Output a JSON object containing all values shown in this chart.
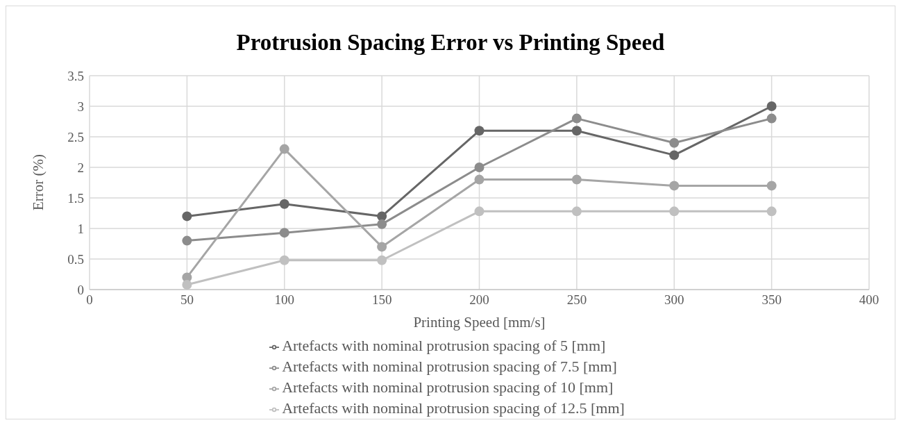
{
  "chart_data": {
    "type": "line",
    "title": "Protrusion Spacing Error vs Printing Speed",
    "xlabel": "Printing Speed [mm/s]",
    "ylabel": "Error (%)",
    "x": [
      50,
      100,
      150,
      200,
      250,
      300,
      350
    ],
    "series": [
      {
        "name": "Artefacts with nominal protrusion spacing of 5 [mm]",
        "color": "#666666",
        "values": [
          1.2,
          1.4,
          1.2,
          2.6,
          2.6,
          2.2,
          3.0
        ]
      },
      {
        "name": "Artefacts with nominal protrusion spacing of 7.5 [mm]",
        "color": "#8c8c8c",
        "values": [
          0.8,
          0.93,
          1.07,
          2.0,
          2.8,
          2.4,
          2.8
        ]
      },
      {
        "name": "Artefacts with nominal protrusion spacing of 10 [mm]",
        "color": "#a5a5a5",
        "values": [
          0.2,
          2.3,
          0.7,
          1.8,
          1.8,
          1.7,
          1.7
        ]
      },
      {
        "name": "Artefacts with nominal protrusion spacing of 12.5 [mm]",
        "color": "#c0c0c0",
        "values": [
          0.08,
          0.48,
          0.48,
          1.28,
          1.28,
          1.28,
          1.28
        ]
      }
    ],
    "xlim": [
      0,
      400
    ],
    "xticks": [
      0,
      50,
      100,
      150,
      200,
      250,
      300,
      350,
      400
    ],
    "ylim": [
      0,
      3.5
    ],
    "yticks": [
      0,
      0.5,
      1,
      1.5,
      2,
      2.5,
      3,
      3.5
    ],
    "grid": true,
    "legend": "bottom",
    "marker": "circle",
    "line_style": "solid"
  }
}
